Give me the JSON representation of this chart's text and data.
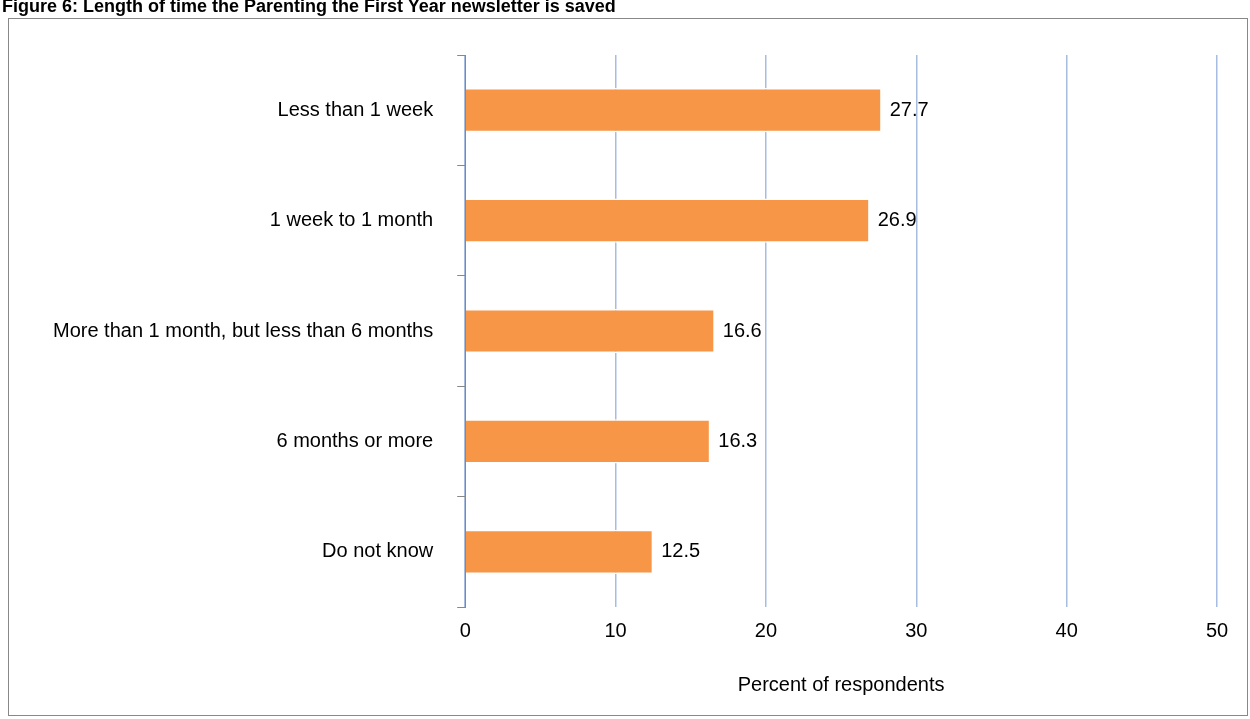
{
  "chart_data": {
    "type": "bar",
    "orientation": "horizontal",
    "title": "Figure 6: Length of time the Parenting the First Year newsletter is saved",
    "xlabel": "Percent of respondents",
    "categories": [
      "Less than 1 week",
      "1 week to 1 month",
      "More than 1 month, but less than 6 months",
      "6 months or more",
      "Do not know"
    ],
    "values": [
      27.7,
      26.9,
      16.6,
      16.3,
      12.5
    ],
    "color": "#f79646",
    "xlim": [
      0,
      50
    ],
    "xticks": [
      0,
      10,
      20,
      30,
      40,
      50
    ],
    "grid": "x",
    "data_labels": true,
    "legend": false
  }
}
